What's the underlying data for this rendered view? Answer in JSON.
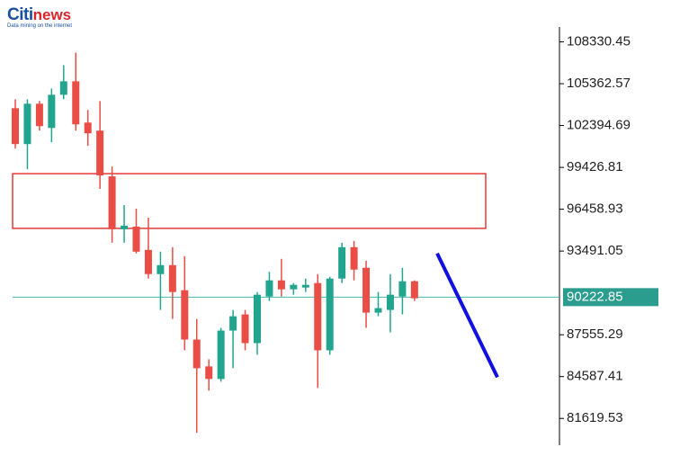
{
  "logo": {
    "brand": "Citi",
    "brand_suffix": "news",
    "tagline": "Data mining on the internet"
  },
  "chart_data": {
    "type": "candlestick",
    "ylim": [
      79400,
      111300
    ],
    "yticks": [
      108330.45,
      105362.57,
      102394.69,
      99426.81,
      96458.93,
      93491.05,
      87555.29,
      84587.41,
      81619.53
    ],
    "current_price": 90222.85,
    "zone": [
      95101,
      98981
    ],
    "projection": [
      93321,
      84544
    ],
    "up_color": "#22a58f",
    "down_color": "#ea4d45",
    "zone_color": "#e53935",
    "price_line_color": "#3fb8b0",
    "projection_color": "#1010e0",
    "open": [
      103624,
      101080,
      103942,
      102224,
      104578,
      105532,
      102606,
      102034,
      98790,
      95038,
      95229,
      93575,
      91858,
      92494,
      90713,
      87215,
      85307,
      84417,
      87851,
      88996,
      86960,
      90268,
      91413,
      90777,
      90904,
      91222,
      86452,
      91540,
      93766,
      92303,
      89123,
      89314,
      90268,
      91349
    ],
    "high": [
      104260,
      104260,
      104132,
      105023,
      106676,
      107567,
      103497,
      104132,
      99490,
      96755,
      96500,
      95865,
      93448,
      93766,
      93130,
      88678,
      85816,
      88042,
      89314,
      89314,
      90586,
      92015,
      92939,
      91222,
      91540,
      91858,
      91667,
      94084,
      94211,
      92812,
      90586,
      91858,
      92303,
      91413
    ],
    "low": [
      100762,
      99299,
      102034,
      101207,
      104260,
      102034,
      100952,
      97900,
      94084,
      94084,
      93321,
      91540,
      89314,
      88678,
      86452,
      80600,
      83590,
      84226,
      85180,
      86452,
      86134,
      89950,
      90268,
      90395,
      90586,
      83781,
      86134,
      91222,
      91413,
      88042,
      88868,
      87724,
      89000,
      89950
    ],
    "close": [
      101080,
      103942,
      102352,
      104578,
      105532,
      102479,
      101843,
      98854,
      95038,
      95292,
      93448,
      91858,
      92494,
      90586,
      87215,
      85180,
      84417,
      87851,
      88868,
      86960,
      90395,
      91413,
      90777,
      91095,
      91095,
      86452,
      91540,
      93766,
      92176,
      89123,
      89441,
      90395,
      91349,
      90141
    ]
  }
}
